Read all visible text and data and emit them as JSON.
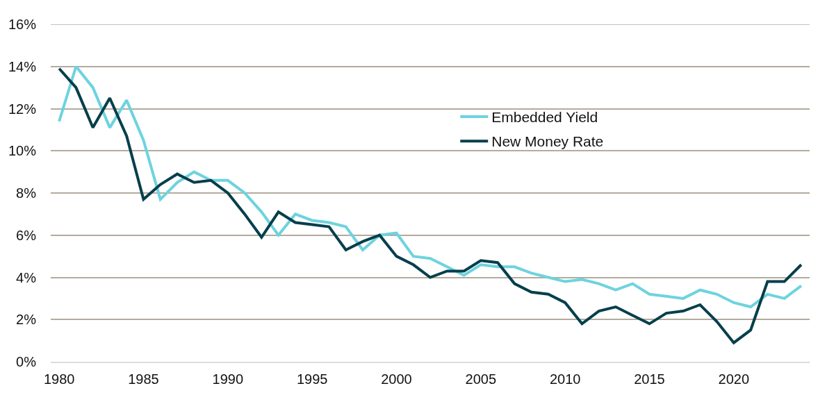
{
  "chart_data": {
    "type": "line",
    "x": [
      1980,
      1981,
      1982,
      1983,
      1984,
      1985,
      1986,
      1987,
      1988,
      1989,
      1990,
      1991,
      1992,
      1993,
      1994,
      1995,
      1996,
      1997,
      1998,
      1999,
      2000,
      2001,
      2002,
      2003,
      2004,
      2005,
      2006,
      2007,
      2008,
      2009,
      2010,
      2011,
      2012,
      2013,
      2014,
      2015,
      2016,
      2017,
      2018,
      2019,
      2020,
      2021,
      2022,
      2023,
      2024
    ],
    "series": [
      {
        "name": "Embedded Yield",
        "color": "#6dd3df",
        "values": [
          11.4,
          14.0,
          13.0,
          11.1,
          12.4,
          10.5,
          7.7,
          8.5,
          9.0,
          8.6,
          8.6,
          8.0,
          7.1,
          6.0,
          7.0,
          6.7,
          6.6,
          6.4,
          5.3,
          6.0,
          6.1,
          5.0,
          4.9,
          4.5,
          4.1,
          4.6,
          4.5,
          4.5,
          4.2,
          4.0,
          3.8,
          3.9,
          3.7,
          3.4,
          3.7,
          3.2,
          3.1,
          3.0,
          3.4,
          3.2,
          2.8,
          2.6,
          3.2,
          3.0,
          3.6
        ]
      },
      {
        "name": "New Money Rate",
        "color": "#063f4c",
        "values": [
          13.9,
          13.0,
          11.1,
          12.5,
          10.7,
          7.7,
          8.4,
          8.9,
          8.5,
          8.6,
          8.0,
          7.0,
          5.9,
          7.1,
          6.6,
          6.5,
          6.4,
          5.3,
          5.7,
          6.0,
          5.0,
          4.6,
          4.0,
          4.3,
          4.3,
          4.8,
          4.7,
          3.7,
          3.3,
          3.2,
          2.8,
          1.8,
          2.4,
          2.6,
          2.2,
          1.8,
          2.3,
          2.4,
          2.7,
          1.9,
          0.9,
          1.5,
          3.8,
          3.8,
          4.6
        ]
      }
    ],
    "xlim": [
      1979.5,
      2024.5
    ],
    "xticks": [
      1980,
      1985,
      1990,
      1995,
      2000,
      2005,
      2010,
      2015,
      2020
    ],
    "ylim": [
      0,
      16
    ],
    "yticks": [
      {
        "value": 0,
        "label": "0%"
      },
      {
        "value": 2,
        "label": "2%"
      },
      {
        "value": 4,
        "label": "4%"
      },
      {
        "value": 6,
        "label": "6%"
      },
      {
        "value": 8,
        "label": "8%"
      },
      {
        "value": 10,
        "label": "10%"
      },
      {
        "value": 12,
        "label": "12%"
      },
      {
        "value": 14,
        "label": "14%"
      },
      {
        "value": 16,
        "label": "16%"
      }
    ],
    "grid": "y",
    "legend": "top right",
    "line_style": "solid"
  }
}
